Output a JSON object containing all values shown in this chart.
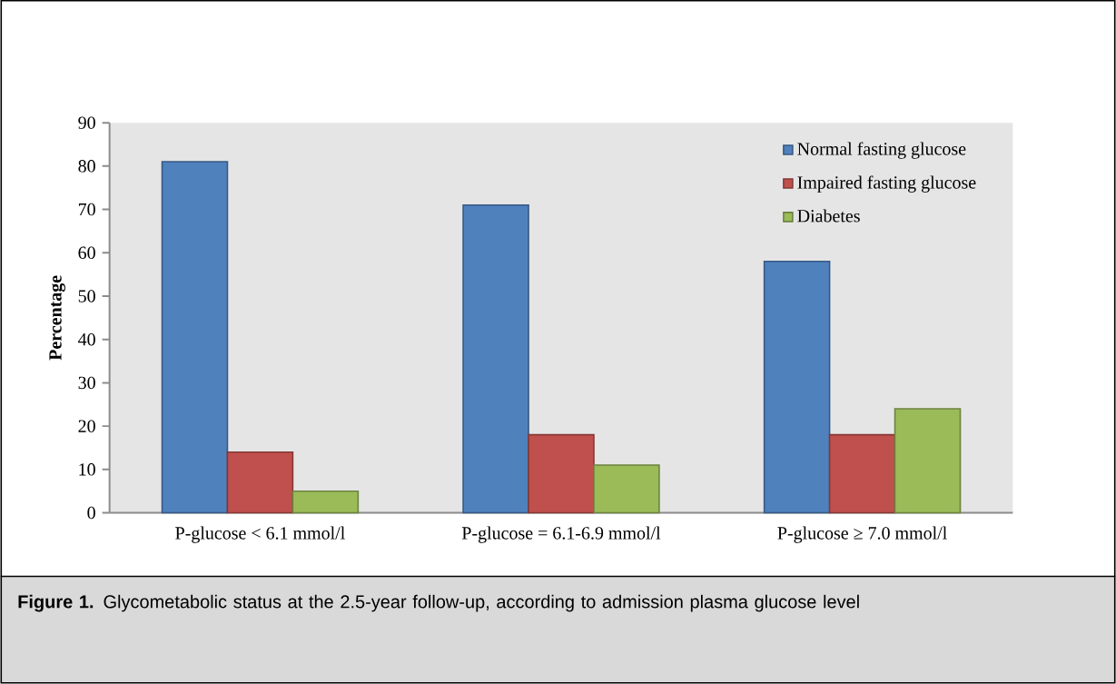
{
  "chart_data": {
    "type": "bar",
    "ylabel": "Percentage",
    "categories": [
      "P-glucose < 6.1 mmol/l",
      "P-glucose = 6.1-6.9 mmol/l",
      "P-glucose ≥ 7.0 mmol/l"
    ],
    "series": [
      {
        "name": "Normal fasting glucose",
        "color": "#4f81bd",
        "values": [
          81,
          71,
          58
        ]
      },
      {
        "name": "Impaired fasting glucose",
        "color": "#c0504d",
        "values": [
          14,
          18,
          18
        ]
      },
      {
        "name": "Diabetes",
        "color": "#9bbb59",
        "values": [
          5,
          11,
          24
        ]
      }
    ],
    "ylim": [
      0,
      90
    ],
    "yticks": [
      0,
      10,
      20,
      30,
      40,
      50,
      60,
      70,
      80,
      90
    ],
    "legend": "top right",
    "annotations": [
      "**Figure 1.**  Glycometabolic status at  the 2.5-year follow-up, according to admission plasma glucose level"
    ]
  }
}
